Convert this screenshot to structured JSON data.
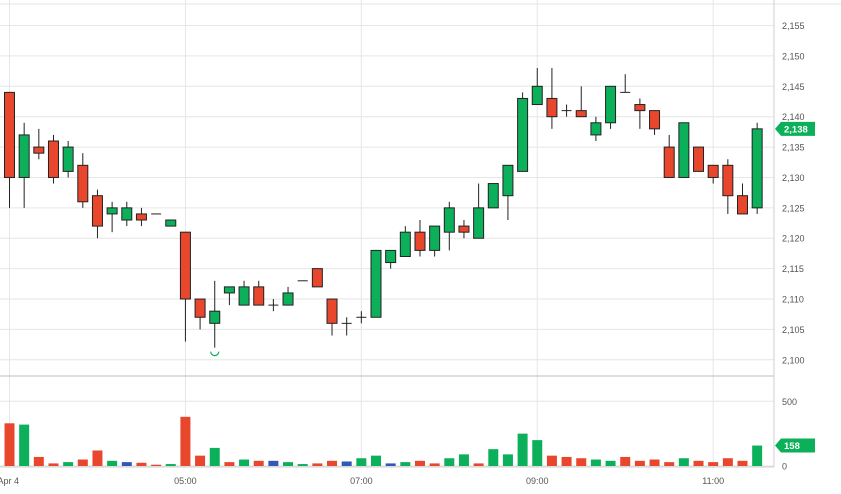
{
  "chart_data": {
    "type": "candlestick",
    "colors": {
      "up": "#0db05a",
      "down": "#e8472d",
      "volume_neutral": "#3257b5",
      "grid": "#e6e6e6",
      "axis_text": "#555555",
      "badge": "#0db05a",
      "badge_text": "#ffffff"
    },
    "price_axis": {
      "ticks": [
        "2,155",
        "2,150",
        "2,145",
        "2,140",
        "2,135",
        "2,130",
        "2,125",
        "2,120",
        "2,115",
        "2,110",
        "2,105",
        "2,100"
      ],
      "range": [
        2097.5,
        2159.2
      ]
    },
    "volume_axis": {
      "ticks": [
        "500",
        "0"
      ],
      "range": [
        0,
        680
      ]
    },
    "time_axis": {
      "labels": [
        "Apr 4",
        "05:00",
        "07:00",
        "09:00",
        "11:00"
      ],
      "label_candle_index": [
        0,
        12,
        24,
        36,
        48
      ]
    },
    "last_price_label": "2,138",
    "last_price": 2138,
    "last_volume_label": "158",
    "last_volume": 158,
    "candles": [
      {
        "o": 2144,
        "h": 2144,
        "l": 2125,
        "c": 2130,
        "v": 330,
        "vc": "down"
      },
      {
        "o": 2130,
        "h": 2139,
        "l": 2125,
        "c": 2137,
        "v": 320,
        "vc": "up"
      },
      {
        "o": 2135,
        "h": 2138,
        "l": 2133,
        "c": 2134,
        "v": 70,
        "vc": "down"
      },
      {
        "o": 2136,
        "h": 2137,
        "l": 2129,
        "c": 2130,
        "v": 20,
        "vc": "down"
      },
      {
        "o": 2131,
        "h": 2136,
        "l": 2130,
        "c": 2135,
        "v": 30,
        "vc": "up"
      },
      {
        "o": 2132,
        "h": 2134,
        "l": 2125,
        "c": 2126,
        "v": 50,
        "vc": "down"
      },
      {
        "o": 2127,
        "h": 2128,
        "l": 2120,
        "c": 2122,
        "v": 120,
        "vc": "down"
      },
      {
        "o": 2124,
        "h": 2126,
        "l": 2121,
        "c": 2125,
        "v": 40,
        "vc": "up"
      },
      {
        "o": 2123,
        "h": 2126,
        "l": 2122,
        "c": 2125,
        "v": 30,
        "vc": "neutral"
      },
      {
        "o": 2124,
        "h": 2125,
        "l": 2122,
        "c": 2123,
        "v": 25,
        "vc": "down"
      },
      {
        "o": 2124,
        "h": 2124,
        "l": 2124,
        "c": 2124,
        "v": 10,
        "vc": "down"
      },
      {
        "o": 2122,
        "h": 2123,
        "l": 2122,
        "c": 2123,
        "v": 15,
        "vc": "up"
      },
      {
        "o": 2121,
        "h": 2121,
        "l": 2103,
        "c": 2110,
        "v": 380,
        "vc": "down"
      },
      {
        "o": 2110,
        "h": 2110,
        "l": 2105,
        "c": 2107,
        "v": 80,
        "vc": "down"
      },
      {
        "o": 2106,
        "h": 2113,
        "l": 2102,
        "c": 2108,
        "v": 140,
        "vc": "up"
      },
      {
        "o": 2111,
        "h": 2112,
        "l": 2109,
        "c": 2112,
        "v": 30,
        "vc": "down"
      },
      {
        "o": 2109,
        "h": 2113,
        "l": 2109,
        "c": 2112,
        "v": 50,
        "vc": "up"
      },
      {
        "o": 2112,
        "h": 2113,
        "l": 2109,
        "c": 2109,
        "v": 40,
        "vc": "down"
      },
      {
        "o": 2109,
        "h": 2110,
        "l": 2108,
        "c": 2109,
        "v": 40,
        "vc": "neutral"
      },
      {
        "o": 2109,
        "h": 2112,
        "l": 2109,
        "c": 2111,
        "v": 30,
        "vc": "up"
      },
      {
        "o": 2113,
        "h": 2113,
        "l": 2113,
        "c": 2113,
        "v": 15,
        "vc": "up"
      },
      {
        "o": 2115,
        "h": 2115,
        "l": 2112,
        "c": 2112,
        "v": 20,
        "vc": "down"
      },
      {
        "o": 2110,
        "h": 2110,
        "l": 2104,
        "c": 2106,
        "v": 40,
        "vc": "down"
      },
      {
        "o": 2106,
        "h": 2107,
        "l": 2104,
        "c": 2106,
        "v": 35,
        "vc": "neutral"
      },
      {
        "o": 2107,
        "h": 2108,
        "l": 2106,
        "c": 2107,
        "v": 60,
        "vc": "up"
      },
      {
        "o": 2107,
        "h": 2118,
        "l": 2107,
        "c": 2118,
        "v": 80,
        "vc": "up"
      },
      {
        "o": 2116,
        "h": 2118,
        "l": 2115,
        "c": 2118,
        "v": 20,
        "vc": "neutral"
      },
      {
        "o": 2117,
        "h": 2122,
        "l": 2117,
        "c": 2121,
        "v": 30,
        "vc": "up"
      },
      {
        "o": 2121,
        "h": 2123,
        "l": 2117,
        "c": 2118,
        "v": 40,
        "vc": "down"
      },
      {
        "o": 2118,
        "h": 2122,
        "l": 2117,
        "c": 2122,
        "v": 20,
        "vc": "down"
      },
      {
        "o": 2121,
        "h": 2126,
        "l": 2118,
        "c": 2125,
        "v": 60,
        "vc": "up"
      },
      {
        "o": 2122,
        "h": 2123,
        "l": 2120,
        "c": 2121,
        "v": 90,
        "vc": "up"
      },
      {
        "o": 2120,
        "h": 2129,
        "l": 2120,
        "c": 2125,
        "v": 20,
        "vc": "down"
      },
      {
        "o": 2125,
        "h": 2129,
        "l": 2125,
        "c": 2129,
        "v": 130,
        "vc": "up"
      },
      {
        "o": 2127,
        "h": 2132,
        "l": 2123,
        "c": 2132,
        "v": 90,
        "vc": "up"
      },
      {
        "o": 2131,
        "h": 2144,
        "l": 2131,
        "c": 2143,
        "v": 250,
        "vc": "up"
      },
      {
        "o": 2142,
        "h": 2148,
        "l": 2142,
        "c": 2145,
        "v": 200,
        "vc": "up"
      },
      {
        "o": 2143,
        "h": 2148,
        "l": 2138,
        "c": 2140,
        "v": 80,
        "vc": "down"
      },
      {
        "o": 2141,
        "h": 2142,
        "l": 2140,
        "c": 2141,
        "v": 70,
        "vc": "down"
      },
      {
        "o": 2141,
        "h": 2145,
        "l": 2140,
        "c": 2140,
        "v": 60,
        "vc": "down"
      },
      {
        "o": 2137,
        "h": 2140,
        "l": 2136,
        "c": 2139,
        "v": 50,
        "vc": "up"
      },
      {
        "o": 2139,
        "h": 2145,
        "l": 2138,
        "c": 2145,
        "v": 40,
        "vc": "up"
      },
      {
        "o": 2144,
        "h": 2147,
        "l": 2144,
        "c": 2144,
        "v": 70,
        "vc": "down"
      },
      {
        "o": 2142,
        "h": 2143,
        "l": 2138,
        "c": 2141,
        "v": 40,
        "vc": "down"
      },
      {
        "o": 2141,
        "h": 2141,
        "l": 2137,
        "c": 2138,
        "v": 50,
        "vc": "down"
      },
      {
        "o": 2135,
        "h": 2137,
        "l": 2130,
        "c": 2130,
        "v": 30,
        "vc": "down"
      },
      {
        "o": 2130,
        "h": 2139,
        "l": 2130,
        "c": 2139,
        "v": 60,
        "vc": "up"
      },
      {
        "o": 2135,
        "h": 2135,
        "l": 2131,
        "c": 2131,
        "v": 40,
        "vc": "down"
      },
      {
        "o": 2132,
        "h": 2132,
        "l": 2129,
        "c": 2130,
        "v": 30,
        "vc": "down"
      },
      {
        "o": 2132,
        "h": 2133,
        "l": 2124,
        "c": 2127,
        "v": 60,
        "vc": "down"
      },
      {
        "o": 2127,
        "h": 2129,
        "l": 2124,
        "c": 2124,
        "v": 40,
        "vc": "down"
      },
      {
        "o": 2125,
        "h": 2139,
        "l": 2124,
        "c": 2138,
        "v": 158,
        "vc": "up"
      }
    ]
  }
}
